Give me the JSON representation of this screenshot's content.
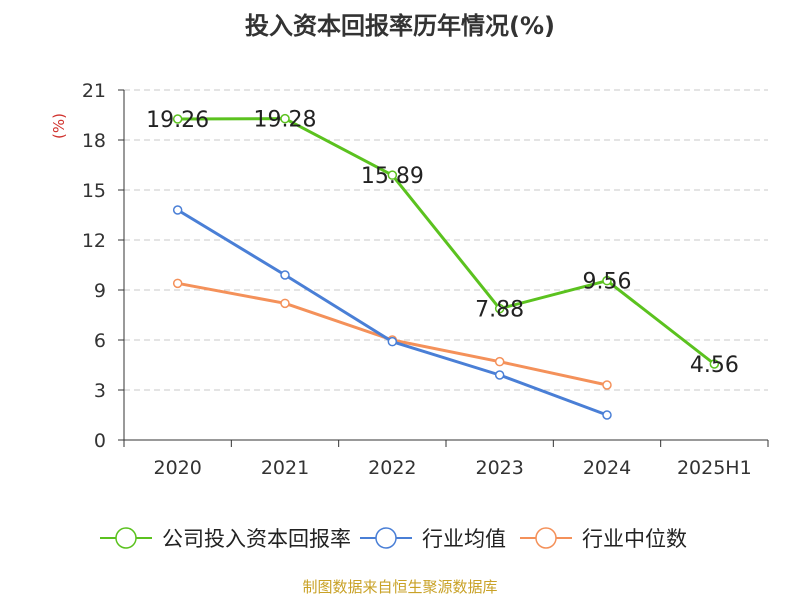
{
  "chart_data": {
    "type": "line",
    "title": "投入资本回报率历年情况(%)",
    "ylabel": "(%)",
    "xlabel": "",
    "categories": [
      "2020",
      "2021",
      "2022",
      "2023",
      "2024",
      "2025H1"
    ],
    "ylim": [
      0,
      21
    ],
    "yticks": [
      0,
      3,
      6,
      9,
      12,
      15,
      18,
      21
    ],
    "grid": true,
    "legend_position": "bottom",
    "series": [
      {
        "name": "公司投入资本回报率",
        "color": "#5bc21f",
        "values": [
          19.26,
          19.28,
          15.89,
          7.88,
          9.56,
          4.56
        ],
        "labels": [
          "19.26",
          "19.28",
          "15.89",
          "7.88",
          "9.56",
          "4.56"
        ]
      },
      {
        "name": "行业均值",
        "color": "#4a7fd6",
        "values": [
          13.8,
          9.9,
          5.9,
          3.9,
          1.5,
          null
        ]
      },
      {
        "name": "行业中位数",
        "color": "#f4915a",
        "values": [
          9.4,
          8.2,
          6.0,
          4.7,
          3.3,
          null
        ]
      }
    ],
    "source": "制图数据来自恒生聚源数据库",
    "title_color": "#333333",
    "ylabel_color": "#d0312d",
    "source_color": "#c9a227"
  }
}
